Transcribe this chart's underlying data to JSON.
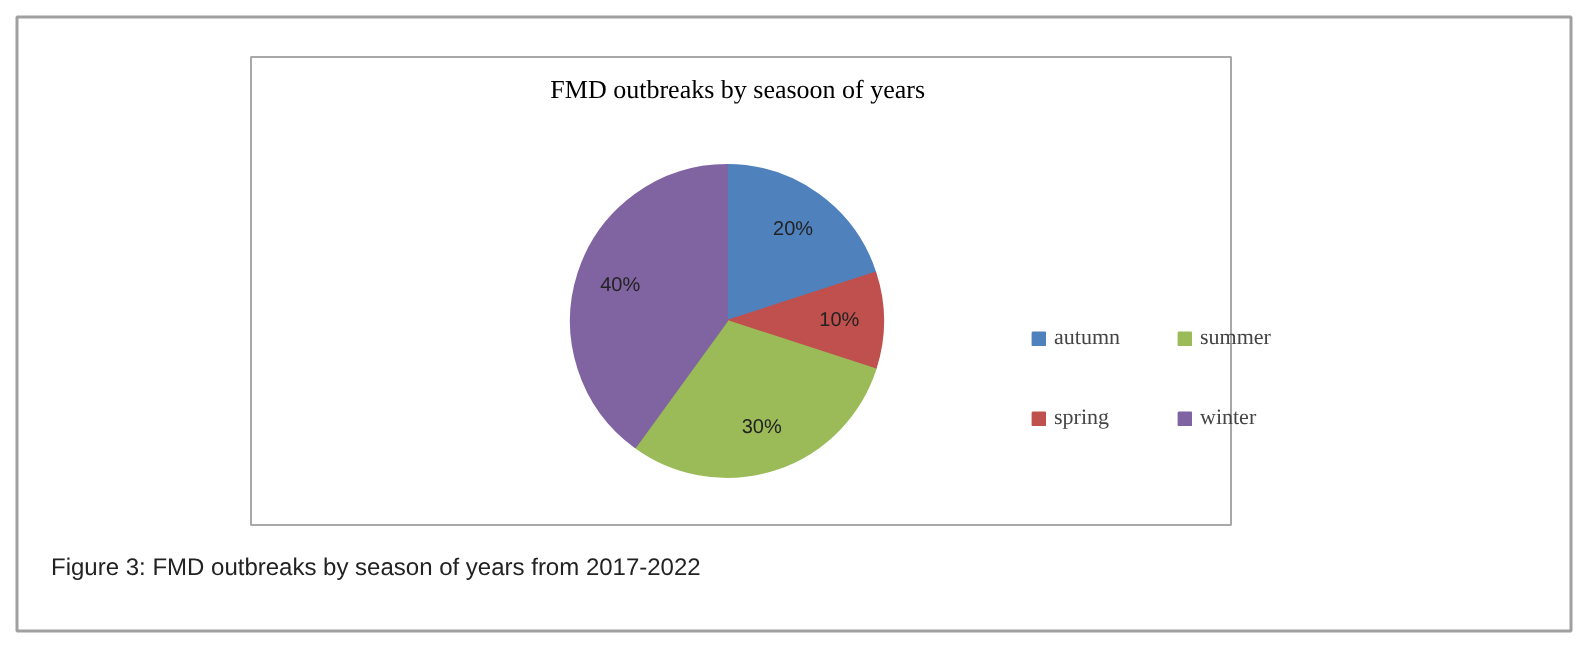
{
  "chart_data": {
    "type": "pie",
    "title": "FMD outbreaks  by seasoon of years",
    "categories": [
      "autumn",
      "spring",
      "summer",
      "winter"
    ],
    "values": [
      20,
      10,
      30,
      40
    ],
    "colors": [
      "#4f81bd",
      "#c0504d",
      "#9bbb59",
      "#8064a2"
    ],
    "value_labels": [
      "20%",
      "10%",
      "30%",
      "40%"
    ],
    "legend": "right",
    "annotations": [
      "Figure 3: FMD outbreaks by season of years from 2017-2022"
    ]
  }
}
